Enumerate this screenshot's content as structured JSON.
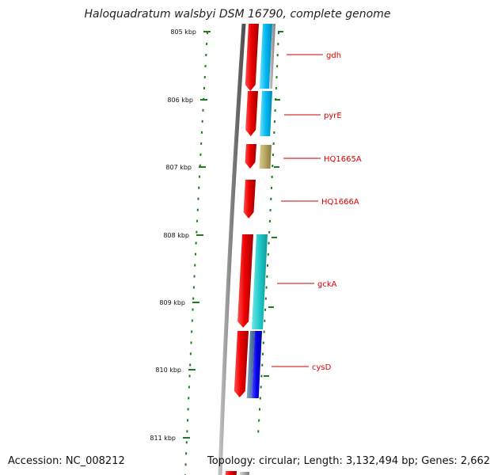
{
  "title": "Haloquadratum walsbyi DSM 16790, complete genome",
  "footer": {
    "accession": "Accession: NC_008212",
    "summary": "Topology: circular; Length: 3,132,494 bp; Genes: 2,662"
  },
  "ticks": [
    "805 kbp",
    "806 kbp",
    "807 kbp",
    "808 kbp",
    "809 kbp",
    "810 kbp",
    "811 kbp"
  ],
  "genes": [
    {
      "label": "gdh",
      "color": "#e00000"
    },
    {
      "label": "pyrE",
      "color": "#e00000"
    },
    {
      "label": "HQ1665A",
      "color": "#e00000"
    },
    {
      "label": "HQ1666A",
      "color": "#e00000"
    },
    {
      "label": "gckA",
      "color": "#e00000"
    },
    {
      "label": "cysD",
      "color": "#e00000"
    }
  ],
  "colors": {
    "gene_red": "#ee0000",
    "cyan": "#00bfff",
    "teal": "#20cccc",
    "khaki": "#b5a560",
    "blue": "#0000ee",
    "steel": "#5a7fa8",
    "gray": "#a0a0a0",
    "tick_green": "#1a7f1a",
    "label_red": "#cc0000"
  }
}
